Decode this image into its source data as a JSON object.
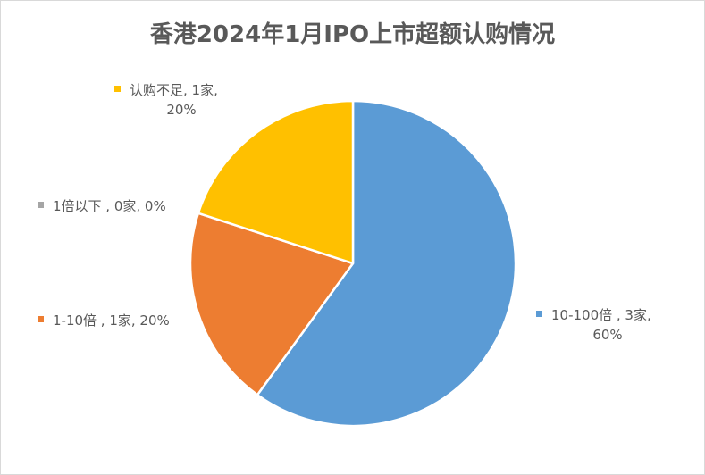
{
  "chart_data": {
    "type": "pie",
    "title": "香港2024年1月IPO上市超额认购情况",
    "slices": [
      {
        "name": "10-100倍",
        "count_label": "3家",
        "value": 60,
        "percent_label": "60%",
        "color": "#5b9bd5"
      },
      {
        "name": "1-10倍",
        "count_label": "1家",
        "value": 20,
        "percent_label": "20%",
        "color": "#ed7d31"
      },
      {
        "name": "1倍以下",
        "count_label": "0家",
        "value": 0,
        "percent_label": "0%",
        "color": "#a5a5a5"
      },
      {
        "name": "认购不足",
        "count_label": "1家",
        "value": 20,
        "percent_label": "20%",
        "color": "#ffc000"
      }
    ],
    "labels": [
      {
        "line1": "10-100倍 , 3家,",
        "line2": "60%"
      },
      {
        "line1": "1-10倍 , 1家, 20%",
        "line2": ""
      },
      {
        "line1": "1倍以下 , 0家, 0%",
        "line2": ""
      },
      {
        "line1": "认购不足, 1家,",
        "line2": "20%"
      }
    ],
    "start_angle_deg": 0,
    "direction": "clockwise",
    "slice_border_color": "#ffffff"
  }
}
